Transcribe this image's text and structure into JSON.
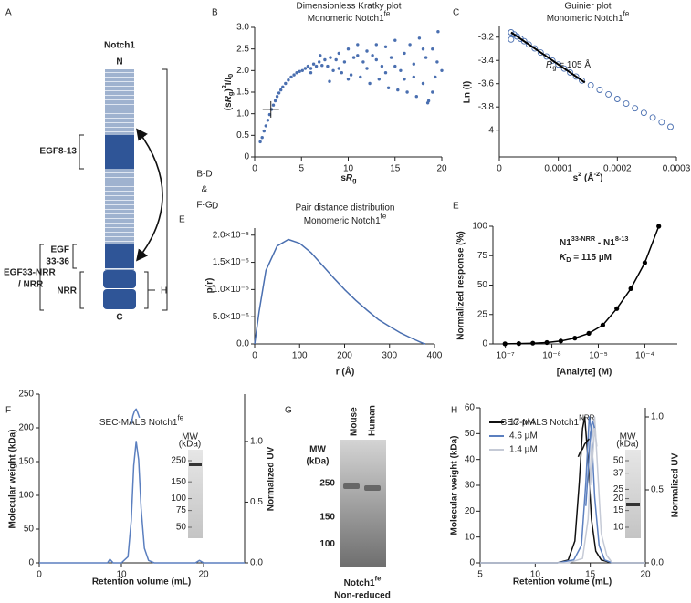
{
  "panels": [
    "A",
    "B",
    "C",
    "D",
    "E",
    "F",
    "G",
    "H"
  ],
  "diagram": {
    "title": "Notch1",
    "n_term": "N",
    "c_term": "C",
    "egf8_13": "EGF8-13",
    "egf33_36": [
      "EGF",
      "33-36"
    ],
    "egf33_nrr": [
      "EGF33-NRR",
      "/ NRR"
    ],
    "nrr": "NRR",
    "e": "E",
    "h": "H",
    "bdfg": [
      "B-D",
      "&",
      "F-G"
    ]
  },
  "gel": {
    "lanes": [
      "Mouse",
      "Human"
    ],
    "mw_title": [
      "MW",
      "(kDa)"
    ],
    "mw_markers": [
      250,
      150,
      100
    ],
    "caption": [
      [
        "Notch1",
        {
          "sup": "fe"
        }
      ],
      "Non-reduced"
    ]
  },
  "chart_data": [
    {
      "type": "scatter",
      "title": "Dimensionless Kratky plot",
      "subtitle": [
        "Monomeric Notch1",
        {
          "sup": "fe"
        }
      ],
      "xlabel": [
        "s",
        {
          "i": "R"
        },
        {
          "sub": "g"
        }
      ],
      "ylabel": [
        "(s",
        {
          "i": "R"
        },
        {
          "sub": "g"
        },
        ")",
        {
          "sup": "2"
        },
        "I/I",
        {
          "sub": "0"
        }
      ],
      "xlim": [
        0,
        20
      ],
      "ylim": [
        0,
        3
      ],
      "xticks": [
        0,
        5,
        10,
        15,
        20
      ],
      "yticks": [
        0,
        0.5,
        {
          "value": 1,
          "label": "1.0"
        },
        1.5,
        {
          "value": 2,
          "label": "2.0"
        },
        2.5,
        {
          "value": 3,
          "label": "3.0"
        }
      ],
      "crosshair": [
        1.73,
        1.1
      ],
      "series": [
        {
          "color": "#4a6fb0",
          "marker": "filled",
          "x": [
            0.6,
            0.8,
            1.0,
            1.2,
            1.4,
            1.6,
            1.8,
            2.0,
            2.2,
            2.4,
            2.6,
            2.8,
            3.0,
            3.3,
            3.6,
            3.9,
            4.2,
            4.5,
            4.8,
            5.1,
            5.4,
            5.7,
            6.0,
            6.3,
            6.6,
            6.9,
            7.2,
            7.5,
            7.8,
            8.1,
            8.4,
            8.7,
            9.0,
            9.3,
            9.6,
            10.0,
            10.3,
            10.6,
            11.0,
            11.3,
            11.6,
            12.0,
            12.3,
            12.6,
            13.0,
            13.3,
            13.6,
            14.0,
            14.3,
            14.6,
            15.0,
            15.3,
            15.6,
            16.0,
            16.3,
            16.6,
            17.0,
            17.3,
            17.6,
            18.0,
            18.3,
            18.6,
            19.0,
            19.3,
            19.6,
            20.0,
            8,
            10,
            12,
            15,
            17,
            19,
            6,
            7,
            9,
            11,
            13,
            14,
            16,
            18,
            18.5,
            19.5
          ],
          "y": [
            0.35,
            0.45,
            0.6,
            0.72,
            0.85,
            0.98,
            1.1,
            1.2,
            1.3,
            1.4,
            1.48,
            1.55,
            1.62,
            1.7,
            1.78,
            1.85,
            1.9,
            1.95,
            1.98,
            2.0,
            2.05,
            2.1,
            2.05,
            2.15,
            2.1,
            2.2,
            2.12,
            2.25,
            2.1,
            2.3,
            2.0,
            2.25,
            2.4,
            1.95,
            2.2,
            2.5,
            1.9,
            2.3,
            2.6,
            1.85,
            2.2,
            2.45,
            1.7,
            2.35,
            2.6,
            1.8,
            2.1,
            2.55,
            1.6,
            2.3,
            2.7,
            1.55,
            2.0,
            2.4,
            1.5,
            2.6,
            2.15,
            1.4,
            2.75,
            1.7,
            2.3,
            1.3,
            2.5,
            1.85,
            2.9,
            2.0,
            1.75,
            1.8,
            2.05,
            2.1,
            1.85,
            1.5,
            1.95,
            2.35,
            2.05,
            2.35,
            2.25,
            1.95,
            1.8,
            2.5,
            1.25,
            2.2
          ]
        }
      ]
    },
    {
      "type": "scatter",
      "title": "Guinier plot",
      "subtitle": [
        "Monomeric Notch1",
        {
          "sup": "fe"
        }
      ],
      "xlabel": [
        "s",
        {
          "sup": "2"
        },
        " (Å",
        {
          "sup": "-2"
        },
        ")"
      ],
      "ylabel": "Ln (I)",
      "xlim": [
        0,
        0.0003
      ],
      "ylim": [
        -4.23,
        -3.1
      ],
      "xticks": [
        0,
        0.0001,
        0.0002,
        0.0003
      ],
      "yticks": [
        -3.2,
        -3.4,
        -3.6,
        -3.8,
        -4
      ],
      "fit": {
        "color": "#000000",
        "x": [
          2e-05,
          0.000145
        ],
        "y": [
          -3.159,
          -3.59
        ]
      },
      "annotations": [
        [
          {
            "i": "R"
          },
          {
            "sub": "g"
          },
          " = 105 Å"
        ]
      ],
      "series": [
        {
          "color": "#4a6fb0",
          "marker": "open",
          "x": [
            2e-05,
            2e-05,
            2.5e-05,
            3e-05,
            3.6e-05,
            4.2e-05,
            5e-05,
            6e-05,
            7e-05,
            8e-05,
            9e-05,
            0.0001,
            0.00011,
            0.00012,
            0.00013,
            0.00014,
            0.000155,
            0.00017,
            0.000185,
            0.0002,
            0.000215,
            0.00023,
            0.000245,
            0.00026,
            0.000275,
            0.00029
          ],
          "y": [
            -3.22,
            -3.159,
            -3.176,
            -3.194,
            -3.214,
            -3.235,
            -3.263,
            -3.297,
            -3.332,
            -3.366,
            -3.401,
            -3.435,
            -3.47,
            -3.504,
            -3.539,
            -3.573,
            -3.613,
            -3.653,
            -3.692,
            -3.732,
            -3.772,
            -3.812,
            -3.851,
            -3.891,
            -3.931,
            -3.971
          ]
        }
      ]
    },
    {
      "type": "line",
      "title": "Pair distance distribution",
      "subtitle": [
        "Monomeric Notch1",
        {
          "sup": "fe"
        }
      ],
      "xlabel": "r (Å)",
      "ylabel": "p(r)",
      "xlim": [
        0,
        400
      ],
      "ylim": [
        0,
        2.13e-05
      ],
      "xticks": [
        0,
        100,
        200,
        300,
        400
      ],
      "yticks": [
        {
          "value": 0,
          "label": "0.0"
        },
        {
          "value": 5e-06,
          "label": "5.0×10⁻⁶"
        },
        {
          "value": 1e-05,
          "label": "1.0×10⁻⁵"
        },
        {
          "value": 1.5e-05,
          "label": "1.5×10⁻⁵"
        },
        {
          "value": 2e-05,
          "label": "2.0×10⁻⁵"
        }
      ],
      "series": [
        {
          "color": "#4a6fb0",
          "x": [
            0,
            10,
            25,
            50,
            75,
            100,
            125,
            150,
            175,
            200,
            225,
            250,
            275,
            300,
            325,
            350,
            375,
            380
          ],
          "y": [
            0,
            6e-06,
            1.35e-05,
            1.8e-05,
            1.92e-05,
            1.85e-05,
            1.68e-05,
            1.45e-05,
            1.22e-05,
            1e-05,
            8e-06,
            6.2e-06,
            4.5e-06,
            3.2e-06,
            2e-06,
            1e-06,
            1e-07,
            0
          ]
        }
      ]
    },
    {
      "type": "line",
      "markers": true,
      "xlog": true,
      "xlabel": "[Analyte] (M)",
      "ylabel": "Normalized response (%)",
      "xlim": [
        5.4e-08,
        0.0005
      ],
      "ylim": [
        0,
        100
      ],
      "xticks": [
        {
          "value": 1e-07,
          "label": "10⁻⁷"
        },
        {
          "value": 1e-06,
          "label": "10⁻⁶"
        },
        {
          "value": 1e-05,
          "label": "10⁻⁵"
        },
        {
          "value": 0.0001,
          "label": "10⁻⁴"
        }
      ],
      "yticks": [
        0,
        25,
        50,
        75,
        100
      ],
      "annotations": [
        [
          "N1",
          {
            "sup": "33-NRR"
          },
          " - N1",
          {
            "sup": "8-13"
          }
        ],
        [
          {
            "i": "K"
          },
          {
            "sub": "D"
          },
          " = 115 µM"
        ]
      ],
      "series": [
        {
          "color": "#000000",
          "x": [
            9.8e-08,
            1.95e-07,
            3.9e-07,
            7.8e-07,
            1.56e-06,
            3.13e-06,
            6.25e-06,
            1.25e-05,
            2.5e-05,
            5e-05,
            0.0001,
            0.0002
          ],
          "y": [
            0.1,
            0.3,
            0.6,
            1.2,
            2.5,
            5,
            9,
            16,
            30,
            47,
            69,
            100
          ]
        }
      ]
    },
    {
      "type": "line",
      "title": [
        "SEC-MALS Notch1",
        {
          "sup": "fe"
        }
      ],
      "xlabel": "Retention volume (mL)",
      "ylabel": "Molecular weight (kDa)",
      "y2label": "Normalized UV",
      "xlim": [
        0,
        25
      ],
      "ylim": [
        0,
        250
      ],
      "y2lim": [
        0,
        1.39
      ],
      "xticks": [
        0,
        10,
        20
      ],
      "yticks": [
        0,
        50,
        100,
        150,
        200,
        250
      ],
      "y2ticks": [
        {
          "value": 0,
          "label": "0.0"
        },
        0.5,
        {
          "value": 1,
          "label": "1.0"
        }
      ],
      "inset": {
        "title": [
          "MW",
          "(kDa)"
        ],
        "markers": [
          250,
          150,
          100,
          75,
          50
        ]
      },
      "series": [
        {
          "color": "#5b7fbf",
          "axis": "y2",
          "x": [
            0,
            6,
            8.3,
            8.6,
            9,
            10,
            10.8,
            11.2,
            11.5,
            11.8,
            12.1,
            12.4,
            12.8,
            13.3,
            14,
            16,
            19,
            19.5,
            20,
            25
          ],
          "y": [
            0,
            0,
            0,
            0.03,
            0,
            0,
            0.05,
            0.35,
            0.8,
            1.0,
            0.85,
            0.45,
            0.12,
            0.02,
            0,
            0,
            0,
            0.02,
            0,
            0
          ]
        },
        {
          "color": "#5b7fbf",
          "x": [
            11.2,
            11.4,
            11.6,
            11.8,
            12.0,
            12.2
          ],
          "y": [
            205,
            218,
            225,
            228,
            222,
            215
          ]
        }
      ]
    },
    {
      "type": "line",
      "title": [
        "SEC-MALS Notch1",
        {
          "sup": "NRR"
        }
      ],
      "xlabel": "Retention volume (mL)",
      "ylabel": "Molecular weight (kDa)",
      "y2label": "Normalized UV",
      "xlim": [
        5,
        20
      ],
      "ylim": [
        0,
        60
      ],
      "y2lim": [
        0,
        1.0625
      ],
      "xticks": [
        5,
        10,
        15,
        20
      ],
      "yticks": [
        0,
        10,
        20,
        30,
        40,
        50,
        60
      ],
      "y2ticks": [
        {
          "value": 0,
          "label": "0.0"
        },
        0.5,
        {
          "value": 1,
          "label": "1.0"
        }
      ],
      "legend": "upper left",
      "inset": {
        "title": [
          "MW",
          "(kDa)"
        ],
        "markers": [
          50,
          37,
          25,
          20,
          15,
          10
        ]
      },
      "series": [
        {
          "name": "17 µM",
          "color": "#111111",
          "axis": "y2",
          "x": [
            5,
            12,
            13,
            13.6,
            14,
            14.3,
            14.5,
            14.8,
            15.1,
            15.5,
            16,
            17,
            20
          ],
          "y": [
            0,
            0,
            0.02,
            0.15,
            0.55,
            0.92,
            1.0,
            0.7,
            0.3,
            0.08,
            0.02,
            0,
            0
          ]
        },
        {
          "name": "4.6 µM",
          "color": "#5b7fbf",
          "axis": "y2",
          "x": [
            5,
            12,
            13.5,
            14.2,
            14.6,
            14.9,
            15.1,
            15.4,
            15.8,
            16.3,
            17,
            20
          ],
          "y": [
            0,
            0,
            0.02,
            0.12,
            0.55,
            1.0,
            0.9,
            0.45,
            0.12,
            0.02,
            0,
            0
          ]
        },
        {
          "name": "1.4 µM",
          "color": "#c5cad6",
          "axis": "y2",
          "x": [
            5,
            13,
            14.3,
            14.8,
            15.1,
            15.4,
            15.7,
            16,
            16.5,
            17,
            20
          ],
          "y": [
            0,
            0,
            0.03,
            0.3,
            0.8,
            1.0,
            0.6,
            0.2,
            0.05,
            0,
            0
          ]
        },
        {
          "color": "#111111",
          "x": [
            13.9,
            14.1,
            14.3,
            14.5,
            14.7,
            14.9
          ],
          "y": [
            41,
            43,
            44,
            46,
            47,
            48
          ]
        },
        {
          "color": "#5b7fbf",
          "x": [
            14.6,
            14.8,
            15.0,
            15.2,
            15.4
          ],
          "y": [
            22,
            35,
            50,
            55,
            52
          ]
        },
        {
          "color": "#c5cad6",
          "x": [
            15.0,
            15.2,
            15.4,
            15.6
          ],
          "y": [
            30,
            40,
            52,
            45
          ]
        }
      ]
    }
  ]
}
